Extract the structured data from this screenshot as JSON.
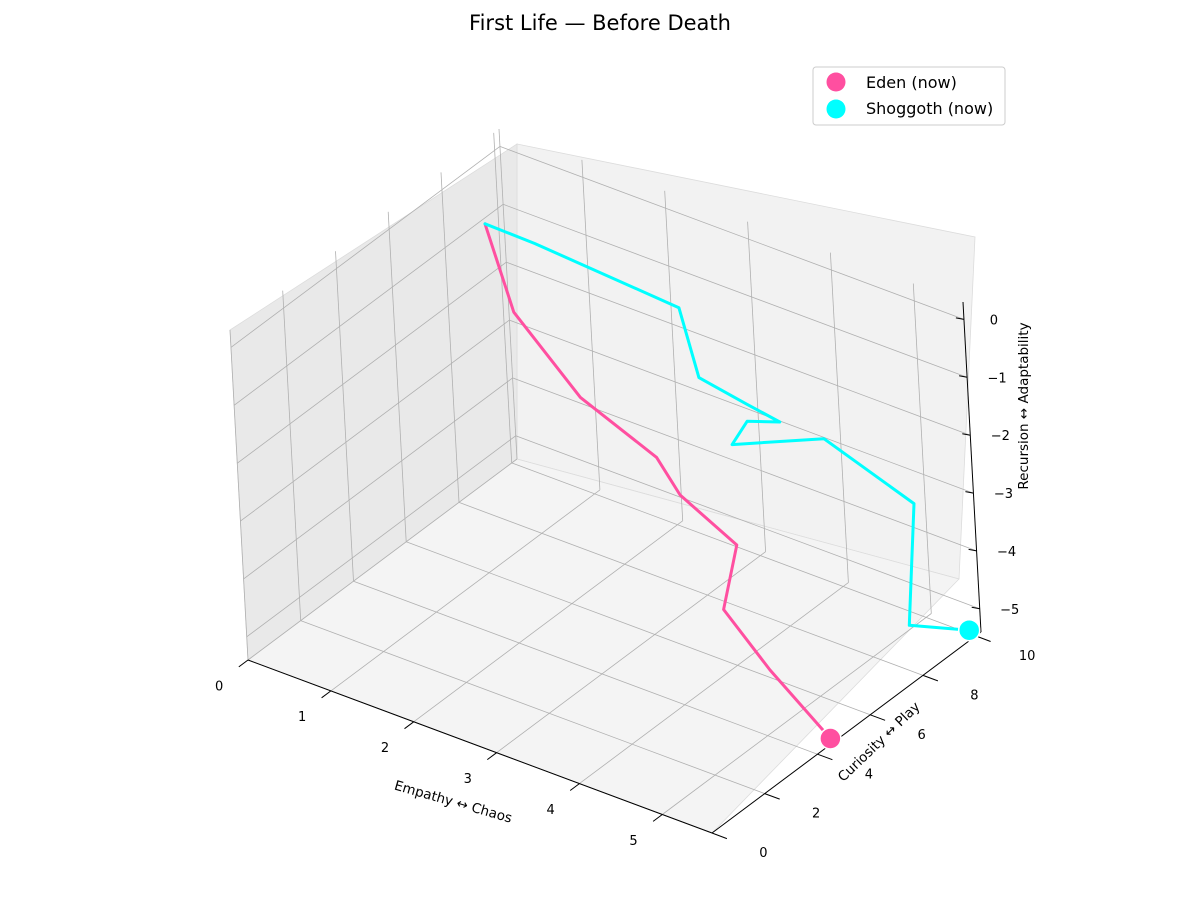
{
  "chart_data": {
    "type": "line-3d",
    "title": "First Life — Before Death",
    "xlabel": "Empathy ↔ Chaos",
    "ylabel": "Curiosity ↔ Play",
    "zlabel": "Recursion ↔ Adaptability",
    "xlim": [
      0,
      5.6
    ],
    "ylim": [
      0,
      10.2
    ],
    "zlim": [
      -5.4,
      0.3
    ],
    "xticks": [
      "0",
      "1",
      "2",
      "3",
      "4",
      "5"
    ],
    "yticks": [
      "0",
      "2",
      "4",
      "6",
      "8",
      "10"
    ],
    "zticks": [
      "0",
      "−1",
      "−2",
      "−3",
      "−4",
      "−5"
    ],
    "grid": true,
    "legend_position": "top-right",
    "series": [
      {
        "name": "Eden (now)",
        "color": "#ff4fa0",
        "points": [
          [
            0.0,
            9.5,
            -1.1
          ],
          [
            0.6,
            8.6,
            -2.0
          ],
          [
            1.6,
            7.9,
            -2.7
          ],
          [
            2.6,
            7.6,
            -3.1
          ],
          [
            3.0,
            7.2,
            -3.4
          ],
          [
            3.8,
            6.8,
            -3.7
          ],
          [
            4.0,
            5.6,
            -4.3
          ],
          [
            4.7,
            5.1,
            -4.8
          ],
          [
            5.6,
            4.5,
            -5.3
          ]
        ]
      },
      {
        "name": "Shoggoth (now)",
        "color": "#00ffff",
        "points": [
          [
            0.0,
            9.5,
            -1.1
          ],
          [
            0.6,
            9.5,
            -1.12
          ],
          [
            2.4,
            9.3,
            -1.2
          ],
          [
            2.6,
            9.3,
            -2.3
          ],
          [
            3.2,
            9.2,
            -2.4
          ],
          [
            3.6,
            9.2,
            -2.5
          ],
          [
            3.2,
            9.2,
            -2.7
          ],
          [
            3.2,
            8.6,
            -2.9
          ],
          [
            4.2,
            9.0,
            -2.4
          ],
          [
            5.3,
            8.9,
            -2.9
          ],
          [
            5.6,
            7.6,
            -4.4
          ],
          [
            6.2,
            8.0,
            -4.3
          ]
        ]
      }
    ]
  }
}
